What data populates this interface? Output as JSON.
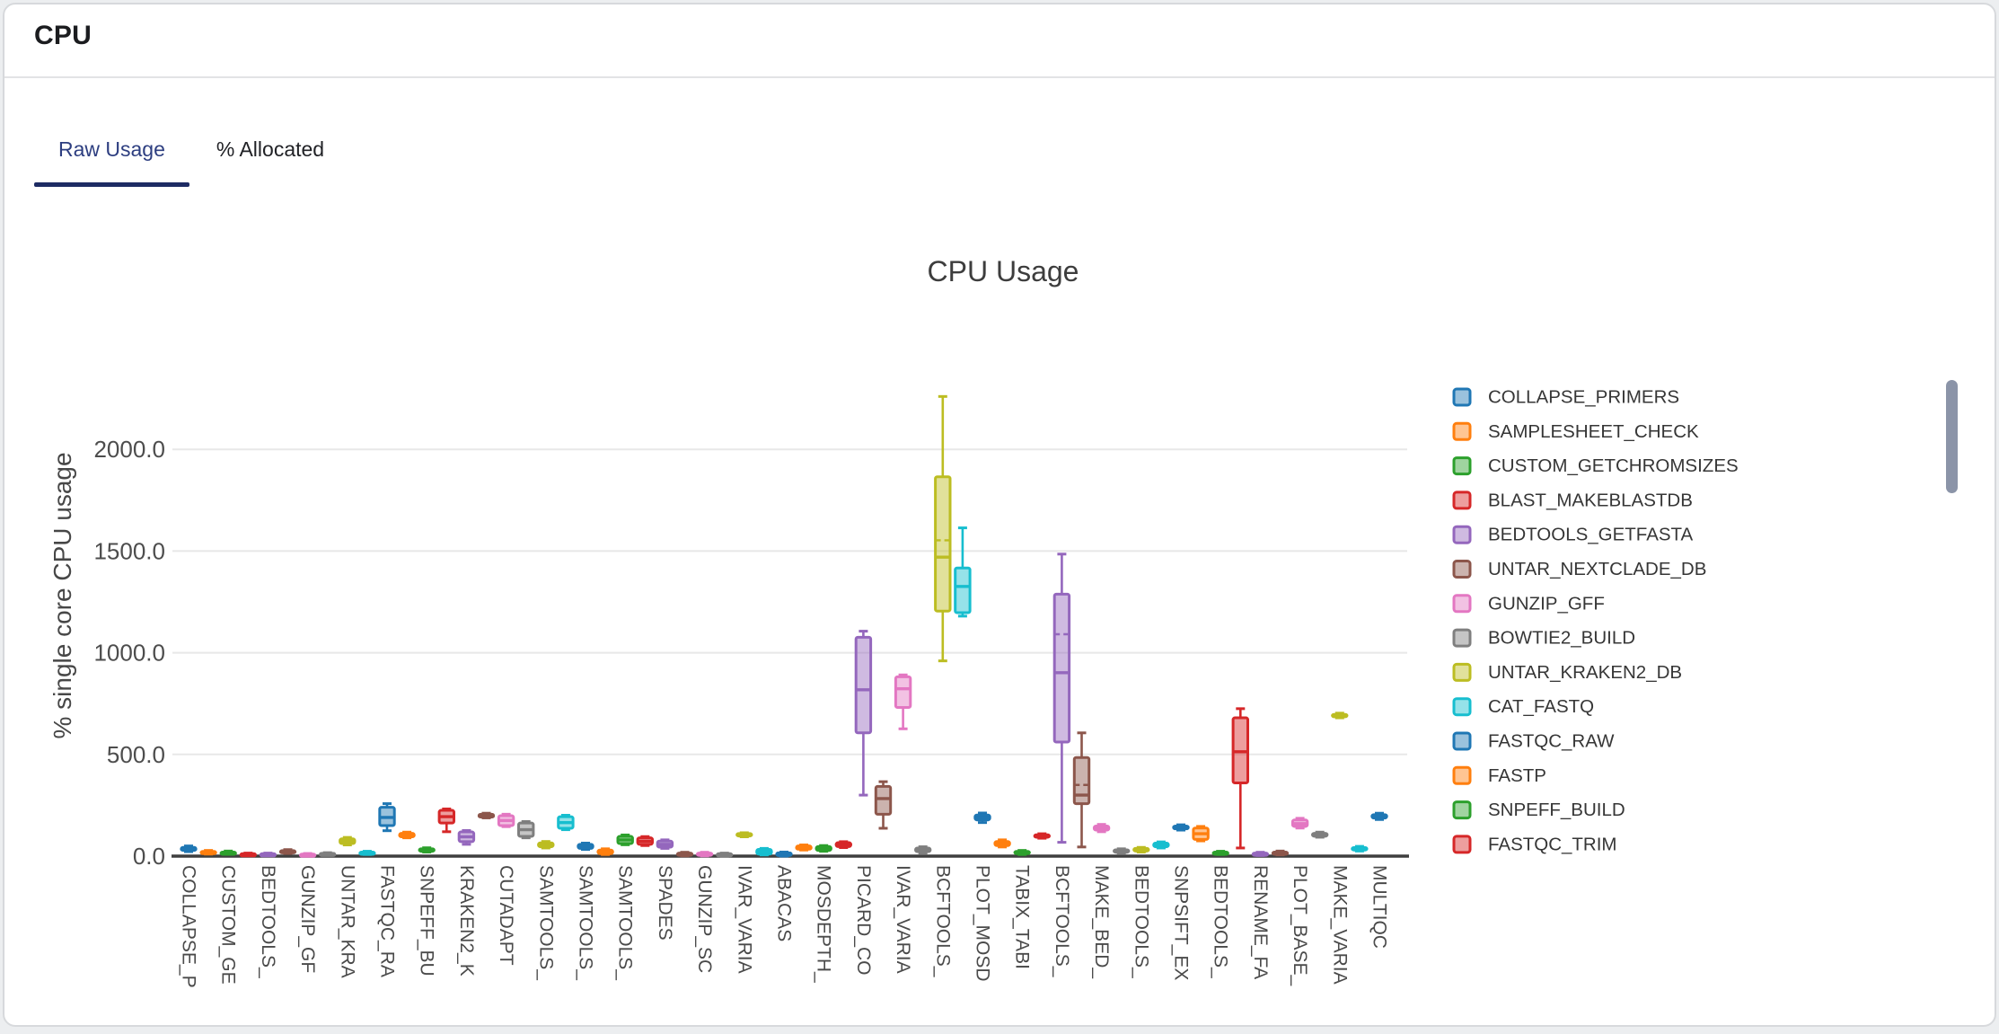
{
  "header": {
    "title": "CPU"
  },
  "tabs": [
    {
      "label": "Raw Usage",
      "active": true
    },
    {
      "label": "% Allocated",
      "active": false
    }
  ],
  "colors": {
    "active_tab_text": "#2d3e80",
    "active_tab_underline": "#1d2b63",
    "axis_line": "#3f3f3f",
    "gridline": "#e8e8e8"
  },
  "palette": [
    "#1f77b4",
    "#ff7f0e",
    "#2ca02c",
    "#d62728",
    "#9467bd",
    "#8c564b",
    "#e377c2",
    "#7f7f7f",
    "#bcbd22",
    "#17becf"
  ],
  "legend_scrollbar": {
    "color": "#8b94a8"
  },
  "chart_data": {
    "type": "box",
    "title": "CPU Usage",
    "ylabel": "% single core CPU usage",
    "yticks": [
      0,
      500,
      1000,
      1500,
      2000
    ],
    "ytick_labels": [
      "0.0",
      "500.0",
      "1000.0",
      "1500.0",
      "2000.0"
    ],
    "ylim": [
      0,
      2330
    ],
    "grid": true,
    "legend_position": "right",
    "legend": [
      "COLLAPSE_PRIMERS",
      "SAMPLESHEET_CHECK",
      "CUSTOM_GETCHROMSIZES",
      "BLAST_MAKEBLASTDB",
      "BEDTOOLS_GETFASTA",
      "UNTAR_NEXTCLADE_DB",
      "GUNZIP_GFF",
      "BOWTIE2_BUILD",
      "UNTAR_KRAKEN2_DB",
      "CAT_FASTQ",
      "FASTQC_RAW",
      "FASTP",
      "SNPEFF_BUILD",
      "FASTQC_TRIM"
    ],
    "series": [
      {
        "xlabel": "COLLAPSE_P",
        "lo": 22,
        "q1": 28,
        "med": 35,
        "q3": 43,
        "hi": 50
      },
      {
        "xlabel": "",
        "lo": 10,
        "q1": 14,
        "med": 18,
        "q3": 23,
        "hi": 28
      },
      {
        "xlabel": "CUSTOM_GE",
        "lo": 9,
        "q1": 12,
        "med": 16,
        "q3": 20,
        "hi": 25
      },
      {
        "xlabel": "",
        "lo": 4,
        "q1": 6,
        "med": 9,
        "q3": 12,
        "hi": 15
      },
      {
        "xlabel": "BEDTOOLS_",
        "lo": 4,
        "q1": 6,
        "med": 9,
        "q3": 12,
        "hi": 15
      },
      {
        "xlabel": "",
        "lo": 13,
        "q1": 17,
        "med": 22,
        "q3": 27,
        "hi": 32
      },
      {
        "xlabel": "GUNZIP_GF",
        "lo": 3,
        "q1": 5,
        "med": 7,
        "q3": 10,
        "hi": 13
      },
      {
        "xlabel": "",
        "lo": 5,
        "q1": 8,
        "med": 11,
        "q3": 14,
        "hi": 17
      },
      {
        "xlabel": "UNTAR_KRA",
        "lo": 55,
        "q1": 62,
        "med": 73,
        "q3": 85,
        "hi": 92
      },
      {
        "xlabel": "",
        "lo": 8,
        "q1": 12,
        "med": 16,
        "q3": 20,
        "hi": 24
      },
      {
        "xlabel": "FASTQC_RA",
        "lo": 125,
        "q1": 150,
        "med": 190,
        "q3": 240,
        "hi": 258
      },
      {
        "xlabel": "",
        "lo": 90,
        "q1": 95,
        "med": 104,
        "q3": 112,
        "hi": 118
      },
      {
        "xlabel": "SNPEFF_BU",
        "lo": 20,
        "q1": 24,
        "med": 30,
        "q3": 36,
        "hi": 41
      },
      {
        "xlabel": "",
        "lo": 120,
        "q1": 163,
        "med": 194,
        "q3": 225,
        "hi": 232
      },
      {
        "xlabel": "KRAKEN2_K",
        "lo": 58,
        "q1": 71,
        "med": 95,
        "q3": 119,
        "hi": 126
      },
      {
        "xlabel": "",
        "lo": 188,
        "q1": 192,
        "med": 199,
        "q3": 206,
        "hi": 211
      },
      {
        "xlabel": "CUTADAPT",
        "lo": 145,
        "q1": 150,
        "med": 175,
        "q3": 199,
        "hi": 206
      },
      {
        "xlabel": "",
        "lo": 90,
        "q1": 97,
        "med": 130,
        "q3": 163,
        "hi": 170
      },
      {
        "xlabel": "SAMTOOLS_",
        "lo": 40,
        "q1": 46,
        "med": 55,
        "q3": 65,
        "hi": 72
      },
      {
        "xlabel": "",
        "lo": 130,
        "q1": 137,
        "med": 165,
        "q3": 194,
        "hi": 201
      },
      {
        "xlabel": "SAMTOOLS_",
        "lo": 33,
        "q1": 38,
        "med": 48,
        "q3": 58,
        "hi": 64
      },
      {
        "xlabel": "",
        "lo": 8,
        "q1": 12,
        "med": 20,
        "q3": 30,
        "hi": 36
      },
      {
        "xlabel": "SAMTOOLS_",
        "lo": 56,
        "q1": 62,
        "med": 80,
        "q3": 97,
        "hi": 104
      },
      {
        "xlabel": "",
        "lo": 52,
        "q1": 58,
        "med": 73,
        "q3": 90,
        "hi": 96
      },
      {
        "xlabel": "SPADES",
        "lo": 38,
        "q1": 44,
        "med": 58,
        "q3": 74,
        "hi": 80
      },
      {
        "xlabel": "",
        "lo": 1,
        "q1": 4,
        "med": 9,
        "q3": 15,
        "hi": 19
      },
      {
        "xlabel": "GUNZIP_SC",
        "lo": 1,
        "q1": 4,
        "med": 9,
        "q3": 15,
        "hi": 19
      },
      {
        "xlabel": "",
        "lo": 0,
        "q1": 3,
        "med": 7,
        "q3": 12,
        "hi": 15
      },
      {
        "xlabel": "IVAR_VARIA",
        "lo": 95,
        "q1": 99,
        "med": 105,
        "q3": 111,
        "hi": 115
      },
      {
        "xlabel": "",
        "lo": 6,
        "q1": 10,
        "med": 20,
        "q3": 33,
        "hi": 38
      },
      {
        "xlabel": "ABACAS",
        "lo": 0,
        "q1": 3,
        "med": 9,
        "q3": 16,
        "hi": 20
      },
      {
        "xlabel": "",
        "lo": 30,
        "q1": 34,
        "med": 42,
        "q3": 50,
        "hi": 55
      },
      {
        "xlabel": "MOSDEPTH_",
        "lo": 24,
        "q1": 28,
        "med": 37,
        "q3": 47,
        "hi": 52
      },
      {
        "xlabel": "",
        "lo": 42,
        "q1": 47,
        "med": 56,
        "q3": 66,
        "hi": 71
      },
      {
        "xlabel": "PICARD_CO",
        "lo": 300,
        "q1": 606,
        "med": 818,
        "q3": 1076,
        "hi": 1106
      },
      {
        "xlabel": "",
        "lo": 137,
        "q1": 206,
        "med": 283,
        "q3": 343,
        "hi": 366
      },
      {
        "xlabel": "IVAR_VARIA",
        "lo": 626,
        "q1": 731,
        "med": 823,
        "q3": 882,
        "hi": 891
      },
      {
        "xlabel": "",
        "lo": 15,
        "q1": 22,
        "med": 30,
        "q3": 40,
        "hi": 46
      },
      {
        "xlabel": "BCFTOOLS_",
        "lo": 960,
        "q1": 1205,
        "med": 1470,
        "q3": 1865,
        "hi": 2260,
        "mean": 1553
      },
      {
        "xlabel": "",
        "lo": 1180,
        "q1": 1197,
        "med": 1326,
        "q3": 1417,
        "hi": 1614
      },
      {
        "xlabel": "PLOT_MOSD",
        "lo": 165,
        "q1": 178,
        "med": 190,
        "q3": 202,
        "hi": 212
      },
      {
        "xlabel": "",
        "lo": 45,
        "q1": 52,
        "med": 62,
        "q3": 72,
        "hi": 80
      },
      {
        "xlabel": "TABIX_TABI",
        "lo": 8,
        "q1": 12,
        "med": 17,
        "q3": 23,
        "hi": 28
      },
      {
        "xlabel": "",
        "lo": 88,
        "q1": 93,
        "med": 99,
        "q3": 105,
        "hi": 110
      },
      {
        "xlabel": "BCFTOOLS_",
        "lo": 68,
        "q1": 561,
        "med": 902,
        "q3": 1288,
        "hi": 1485,
        "mean": 1091
      },
      {
        "xlabel": "",
        "lo": 45,
        "q1": 258,
        "med": 300,
        "q3": 485,
        "hi": 606,
        "mean": 350
      },
      {
        "xlabel": "MAKE_BED_",
        "lo": 120,
        "q1": 128,
        "med": 138,
        "q3": 148,
        "hi": 156
      },
      {
        "xlabel": "",
        "lo": 15,
        "q1": 19,
        "med": 25,
        "q3": 31,
        "hi": 36
      },
      {
        "xlabel": "BEDTOOLS_",
        "lo": 20,
        "q1": 25,
        "med": 31,
        "q3": 38,
        "hi": 43
      },
      {
        "xlabel": "",
        "lo": 40,
        "q1": 46,
        "med": 55,
        "q3": 64,
        "hi": 70
      },
      {
        "xlabel": "SNPSIFT_EX",
        "lo": 128,
        "q1": 134,
        "med": 141,
        "q3": 148,
        "hi": 154
      },
      {
        "xlabel": "",
        "lo": 75,
        "q1": 82,
        "med": 110,
        "q3": 138,
        "hi": 146
      },
      {
        "xlabel": "BEDTOOLS_",
        "lo": 8,
        "q1": 11,
        "med": 15,
        "q3": 20,
        "hi": 24
      },
      {
        "xlabel": "",
        "lo": 40,
        "q1": 360,
        "med": 513,
        "q3": 680,
        "hi": 725
      },
      {
        "xlabel": "RENAME_FA",
        "lo": 3,
        "q1": 6,
        "med": 10,
        "q3": 15,
        "hi": 19
      },
      {
        "xlabel": "",
        "lo": 6,
        "q1": 10,
        "med": 15,
        "q3": 20,
        "hi": 25
      },
      {
        "xlabel": "PLOT_BASE_",
        "lo": 138,
        "q1": 146,
        "med": 160,
        "q3": 178,
        "hi": 186
      },
      {
        "xlabel": "",
        "lo": 93,
        "q1": 98,
        "med": 105,
        "q3": 112,
        "hi": 118
      },
      {
        "xlabel": "MAKE_VARIA",
        "lo": 680,
        "q1": 685,
        "med": 691,
        "q3": 697,
        "hi": 703
      },
      {
        "xlabel": "",
        "lo": 25,
        "q1": 30,
        "med": 36,
        "q3": 42,
        "hi": 48
      },
      {
        "xlabel": "MULTIQC",
        "lo": 180,
        "q1": 187,
        "med": 196,
        "q3": 204,
        "hi": 211
      }
    ]
  }
}
